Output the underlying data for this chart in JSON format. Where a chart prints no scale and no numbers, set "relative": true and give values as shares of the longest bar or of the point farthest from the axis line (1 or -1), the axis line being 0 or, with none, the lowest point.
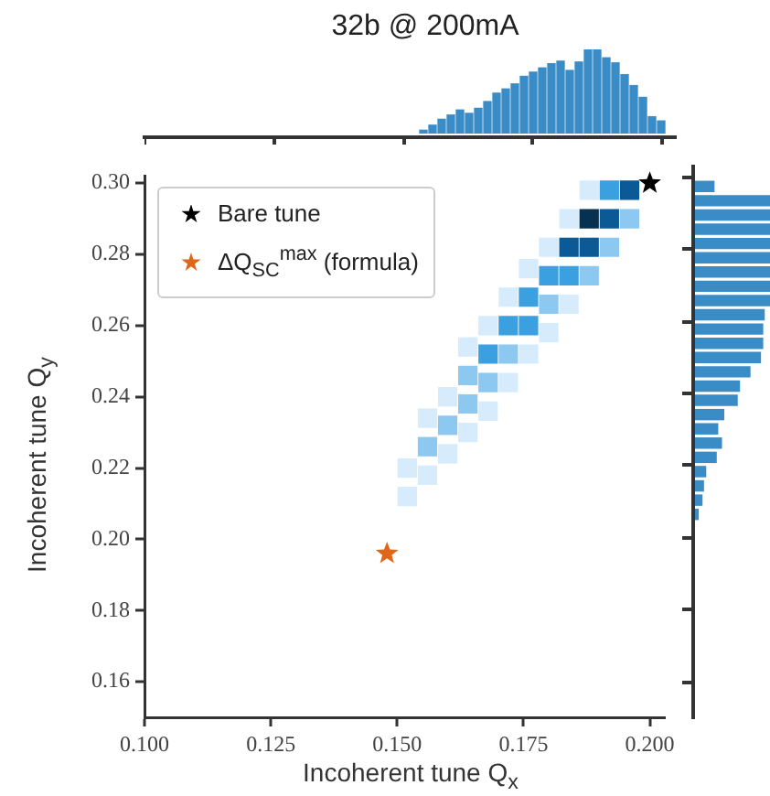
{
  "chart_data": [
    {
      "type": "bar",
      "title": "32b @ 200mA",
      "relative": true,
      "color": "#3a8cc6",
      "categories": [
        null,
        null,
        null,
        null,
        null,
        null,
        null,
        null,
        null,
        null,
        null,
        null,
        null,
        null,
        null,
        null,
        null,
        null,
        null,
        null,
        null,
        null,
        null,
        null,
        null,
        null,
        null
      ],
      "values": [
        0.04,
        0.1,
        0.17,
        0.22,
        0.28,
        0.24,
        0.3,
        0.38,
        0.48,
        0.53,
        0.59,
        0.68,
        0.73,
        0.78,
        0.83,
        0.86,
        0.75,
        0.85,
        1,
        1,
        0.9,
        0.84,
        0.7,
        0.57,
        0.43,
        0.2,
        0.15
      ]
    },
    {
      "type": "scatter",
      "xlabel": "Incoherent tune Q$_{x}$",
      "ylabel": "Incoherent tune Q$_{y}$",
      "legend": "top left",
      "grid": false,
      "xlim": [
        0.1,
        0.203
      ],
      "ylim": [
        0.15,
        0.302
      ],
      "xticks": [
        {
          "value": 0.1,
          "label": "0.100"
        },
        {
          "value": 0.125,
          "label": "0.125"
        },
        {
          "value": 0.15,
          "label": "0.150"
        },
        {
          "value": 0.175,
          "label": "0.175"
        },
        {
          "value": 0.2,
          "label": "0.200"
        }
      ],
      "yticks": [
        {
          "value": 0.16,
          "label": "0.16"
        },
        {
          "value": 0.18,
          "label": "0.18"
        },
        {
          "value": 0.2,
          "label": "0.20"
        },
        {
          "value": 0.22,
          "label": "0.22"
        },
        {
          "value": 0.24,
          "label": "0.24"
        },
        {
          "value": 0.26,
          "label": "0.26"
        },
        {
          "value": 0.28,
          "label": "0.28"
        },
        {
          "value": 0.3,
          "label": "0.30"
        }
      ],
      "series": [
        {
          "marker": "square",
          "x": [
            0.152,
            0.152,
            0.156,
            0.156,
            0.156,
            0.16,
            0.16,
            0.16,
            0.164,
            0.164,
            0.164,
            0.164,
            0.168,
            0.168,
            0.168,
            0.168,
            0.172,
            0.172,
            0.172,
            0.172,
            0.176,
            0.176,
            0.176,
            0.176,
            0.18,
            0.18,
            0.18,
            0.18,
            0.184,
            0.184,
            0.184,
            0.184,
            0.188,
            0.188,
            0.188,
            0.188,
            0.192,
            0.192,
            0.192,
            0.196,
            0.196
          ],
          "values": [
            0.212,
            0.22,
            0.218,
            0.226,
            0.234,
            0.224,
            0.232,
            0.24,
            0.23,
            0.238,
            0.246,
            0.254,
            0.236,
            0.244,
            0.252,
            0.26,
            0.244,
            0.252,
            0.26,
            0.268,
            0.252,
            0.26,
            0.268,
            0.276,
            0.258,
            0.266,
            0.274,
            0.282,
            0.266,
            0.274,
            0.282,
            0.29,
            0.274,
            0.282,
            0.29,
            0.298,
            0.282,
            0.29,
            0.298,
            0.29,
            0.298
          ],
          "colors": [
            "#d6ebfb",
            "#d6ebfb",
            "#d6ebfb",
            "#8cc8f0",
            "#d6ebfb",
            "#d6ebfb",
            "#8cc8f0",
            "#d6ebfb",
            "#d6ebfb",
            "#8cc8f0",
            "#8cc8f0",
            "#d6ebfb",
            "#d6ebfb",
            "#8cc8f0",
            "#3aa0e0",
            "#d6ebfb",
            "#d6ebfb",
            "#8cc8f0",
            "#3aa0e0",
            "#d6ebfb",
            "#d6ebfb",
            "#3aa0e0",
            "#3aa0e0",
            "#d6ebfb",
            "#d6ebfb",
            "#8cc8f0",
            "#3aa0e0",
            "#d6ebfb",
            "#d6ebfb",
            "#3aa0e0",
            "#0b5a96",
            "#d6ebfb",
            "#8cc8f0",
            "#0b5a96",
            "#08304f",
            "#d6ebfb",
            "#8cc8f0",
            "#0b5a96",
            "#3aa0e0",
            "#8cc8f0",
            "#0b5a96"
          ]
        },
        {
          "name": "Bare tune",
          "marker": "star",
          "color": "#000000",
          "x": [
            0.2
          ],
          "values": [
            0.3
          ]
        },
        {
          "name": "ΔQ$_{SC}$$^{max}$ (formula)",
          "marker": "star",
          "color": "#e0661a",
          "x": [
            0.148
          ],
          "values": [
            0.196
          ]
        }
      ]
    },
    {
      "type": "bar",
      "orientation": "horizontal",
      "relative": true,
      "color": "#3a8cc6",
      "categories": [
        null,
        null,
        null,
        null,
        null,
        null,
        null,
        null,
        null,
        null,
        null,
        null,
        null,
        null,
        null,
        null,
        null,
        null,
        null,
        null,
        null,
        null,
        null,
        null
      ],
      "values": [
        0.26,
        1,
        1,
        1,
        1,
        1,
        1,
        1,
        1,
        0.93,
        0.91,
        0.91,
        0.88,
        0.74,
        0.6,
        0.57,
        0.39,
        0.31,
        0.36,
        0.29,
        0.15,
        0.12,
        0.1,
        0.05
      ]
    }
  ]
}
